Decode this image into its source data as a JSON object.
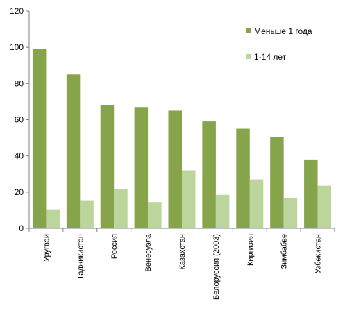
{
  "chart_data": {
    "type": "bar",
    "title": "",
    "xlabel": "",
    "ylabel": "",
    "ylim": [
      0,
      120
    ],
    "yticks": [
      0,
      20,
      40,
      60,
      80,
      100,
      120
    ],
    "grid": false,
    "legend_position": "right",
    "categories": [
      "Уругвай",
      "Таджикистан",
      "Россия",
      "Венесуэла",
      "Казахстан",
      "Белоруссия (2003)",
      "Киргизия",
      "Зимбабве",
      "Узбекистан"
    ],
    "series": [
      {
        "name": "Меньше 1 года",
        "color": "#86a54a",
        "values": [
          99,
          85,
          68,
          67,
          65,
          59,
          55,
          50.5,
          38
        ]
      },
      {
        "name": "1-14 лет",
        "color": "#bcd59c",
        "values": [
          10.5,
          15.5,
          21.5,
          14.5,
          32,
          18.5,
          27,
          16.5,
          23.5
        ]
      }
    ]
  }
}
